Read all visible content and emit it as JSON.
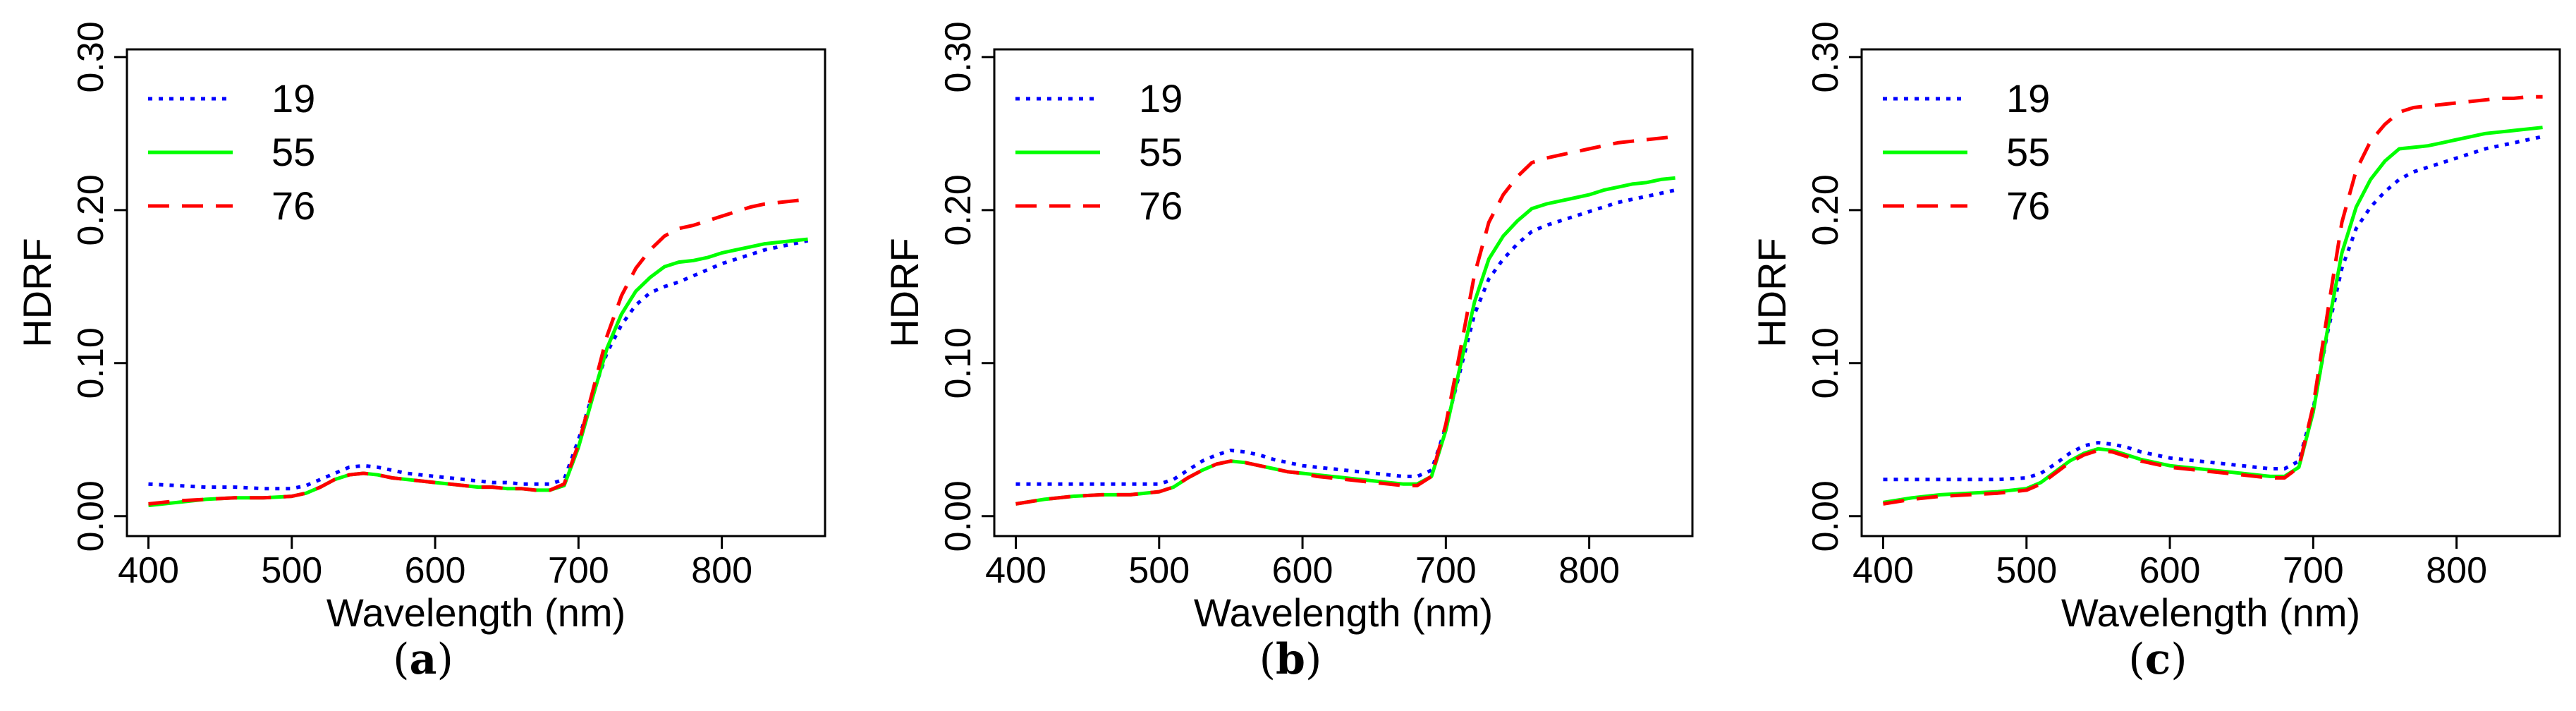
{
  "chart_data": [
    {
      "type": "line",
      "panel_label": "a",
      "xlabel": "Wavelength (nm)",
      "ylabel": "HDRF",
      "xlim": [
        385,
        872
      ],
      "ylim": [
        -0.013,
        0.305
      ],
      "xticks": [
        400,
        500,
        600,
        700,
        800
      ],
      "yticks": [
        0.0,
        0.1,
        0.2,
        0.3
      ],
      "ytick_labels": [
        "0.00",
        "0.10",
        "0.20",
        "0.30"
      ],
      "legend_position": "top-left",
      "series": [
        {
          "name": "19",
          "color": "#0000ff",
          "style": "dotted",
          "x": [
            400,
            420,
            440,
            460,
            480,
            500,
            510,
            520,
            530,
            540,
            550,
            560,
            570,
            580,
            590,
            600,
            610,
            620,
            630,
            640,
            650,
            660,
            670,
            680,
            690,
            700,
            710,
            720,
            730,
            740,
            750,
            760,
            770,
            780,
            790,
            800,
            810,
            820,
            830,
            840,
            850,
            860
          ],
          "y": [
            0.021,
            0.02,
            0.019,
            0.019,
            0.018,
            0.018,
            0.02,
            0.024,
            0.028,
            0.032,
            0.033,
            0.032,
            0.03,
            0.028,
            0.027,
            0.026,
            0.025,
            0.024,
            0.023,
            0.022,
            0.022,
            0.021,
            0.021,
            0.021,
            0.024,
            0.05,
            0.08,
            0.107,
            0.125,
            0.138,
            0.146,
            0.15,
            0.153,
            0.157,
            0.161,
            0.165,
            0.168,
            0.171,
            0.174,
            0.176,
            0.178,
            0.18
          ]
        },
        {
          "name": "55",
          "color": "#00ff00",
          "style": "solid",
          "x": [
            400,
            420,
            440,
            460,
            480,
            500,
            510,
            520,
            530,
            540,
            550,
            560,
            570,
            580,
            590,
            600,
            610,
            620,
            630,
            640,
            650,
            660,
            670,
            680,
            690,
            700,
            710,
            720,
            730,
            740,
            750,
            760,
            770,
            780,
            790,
            800,
            810,
            820,
            830,
            840,
            850,
            860
          ],
          "y": [
            0.007,
            0.009,
            0.011,
            0.012,
            0.012,
            0.013,
            0.015,
            0.019,
            0.024,
            0.027,
            0.028,
            0.027,
            0.025,
            0.024,
            0.023,
            0.022,
            0.021,
            0.02,
            0.019,
            0.019,
            0.018,
            0.018,
            0.017,
            0.017,
            0.02,
            0.045,
            0.078,
            0.11,
            0.132,
            0.147,
            0.156,
            0.163,
            0.166,
            0.167,
            0.169,
            0.172,
            0.174,
            0.176,
            0.178,
            0.179,
            0.18,
            0.181
          ]
        },
        {
          "name": "76",
          "color": "#ff0000",
          "style": "dashed",
          "x": [
            400,
            420,
            440,
            460,
            480,
            500,
            510,
            520,
            530,
            540,
            550,
            560,
            570,
            580,
            590,
            600,
            610,
            620,
            630,
            640,
            650,
            660,
            670,
            680,
            690,
            700,
            710,
            720,
            730,
            740,
            750,
            760,
            770,
            780,
            790,
            800,
            810,
            820,
            830,
            840,
            850,
            860
          ],
          "y": [
            0.008,
            0.01,
            0.011,
            0.012,
            0.012,
            0.013,
            0.015,
            0.019,
            0.024,
            0.027,
            0.028,
            0.027,
            0.025,
            0.024,
            0.023,
            0.022,
            0.021,
            0.02,
            0.019,
            0.019,
            0.018,
            0.018,
            0.017,
            0.017,
            0.021,
            0.047,
            0.082,
            0.118,
            0.144,
            0.162,
            0.174,
            0.183,
            0.188,
            0.19,
            0.193,
            0.196,
            0.199,
            0.202,
            0.204,
            0.205,
            0.206,
            0.207
          ]
        }
      ]
    },
    {
      "type": "line",
      "panel_label": "b",
      "xlabel": "Wavelength (nm)",
      "ylabel": "HDRF",
      "xlim": [
        385,
        872
      ],
      "ylim": [
        -0.013,
        0.305
      ],
      "xticks": [
        400,
        500,
        600,
        700,
        800
      ],
      "yticks": [
        0.0,
        0.1,
        0.2,
        0.3
      ],
      "ytick_labels": [
        "0.00",
        "0.10",
        "0.20",
        "0.30"
      ],
      "legend_position": "top-left",
      "series": [
        {
          "name": "19",
          "color": "#0000ff",
          "style": "dotted",
          "x": [
            400,
            420,
            440,
            460,
            480,
            500,
            510,
            520,
            530,
            540,
            550,
            560,
            570,
            580,
            590,
            600,
            610,
            620,
            630,
            640,
            650,
            660,
            670,
            680,
            690,
            700,
            710,
            720,
            730,
            740,
            750,
            760,
            770,
            780,
            790,
            800,
            810,
            820,
            830,
            840,
            850,
            860
          ],
          "y": [
            0.021,
            0.021,
            0.021,
            0.021,
            0.021,
            0.021,
            0.024,
            0.03,
            0.036,
            0.04,
            0.043,
            0.042,
            0.04,
            0.037,
            0.035,
            0.033,
            0.032,
            0.031,
            0.03,
            0.029,
            0.028,
            0.027,
            0.026,
            0.026,
            0.03,
            0.058,
            0.095,
            0.132,
            0.155,
            0.168,
            0.178,
            0.186,
            0.19,
            0.193,
            0.196,
            0.199,
            0.202,
            0.205,
            0.207,
            0.209,
            0.211,
            0.213
          ]
        },
        {
          "name": "55",
          "color": "#00ff00",
          "style": "solid",
          "x": [
            400,
            420,
            440,
            460,
            480,
            500,
            510,
            520,
            530,
            540,
            550,
            560,
            570,
            580,
            590,
            600,
            610,
            620,
            630,
            640,
            650,
            660,
            670,
            680,
            690,
            700,
            710,
            720,
            730,
            740,
            750,
            760,
            770,
            780,
            790,
            800,
            810,
            820,
            830,
            840,
            850,
            860
          ],
          "y": [
            0.008,
            0.011,
            0.013,
            0.014,
            0.014,
            0.016,
            0.019,
            0.025,
            0.03,
            0.034,
            0.036,
            0.035,
            0.033,
            0.031,
            0.029,
            0.028,
            0.027,
            0.026,
            0.025,
            0.024,
            0.023,
            0.022,
            0.021,
            0.021,
            0.026,
            0.056,
            0.098,
            0.14,
            0.168,
            0.183,
            0.193,
            0.201,
            0.204,
            0.206,
            0.208,
            0.21,
            0.213,
            0.215,
            0.217,
            0.218,
            0.22,
            0.221
          ]
        },
        {
          "name": "76",
          "color": "#ff0000",
          "style": "dashed",
          "x": [
            400,
            420,
            440,
            460,
            480,
            500,
            510,
            520,
            530,
            540,
            550,
            560,
            570,
            580,
            590,
            600,
            610,
            620,
            630,
            640,
            650,
            660,
            670,
            680,
            690,
            700,
            710,
            720,
            730,
            740,
            750,
            760,
            770,
            780,
            790,
            800,
            810,
            820,
            830,
            840,
            850,
            860
          ],
          "y": [
            0.008,
            0.011,
            0.013,
            0.014,
            0.014,
            0.016,
            0.019,
            0.025,
            0.03,
            0.034,
            0.036,
            0.035,
            0.033,
            0.031,
            0.029,
            0.028,
            0.026,
            0.025,
            0.024,
            0.023,
            0.022,
            0.021,
            0.02,
            0.02,
            0.026,
            0.06,
            0.108,
            0.158,
            0.192,
            0.21,
            0.222,
            0.231,
            0.234,
            0.236,
            0.238,
            0.24,
            0.242,
            0.244,
            0.245,
            0.246,
            0.247,
            0.248
          ]
        }
      ]
    },
    {
      "type": "line",
      "panel_label": "c",
      "xlabel": "Wavelength (nm)",
      "ylabel": "HDRF",
      "xlim": [
        385,
        872
      ],
      "ylim": [
        -0.013,
        0.305
      ],
      "xticks": [
        400,
        500,
        600,
        700,
        800
      ],
      "yticks": [
        0.0,
        0.1,
        0.2,
        0.3
      ],
      "ytick_labels": [
        "0.00",
        "0.10",
        "0.20",
        "0.30"
      ],
      "legend_position": "top-left",
      "series": [
        {
          "name": "19",
          "color": "#0000ff",
          "style": "dotted",
          "x": [
            400,
            420,
            440,
            460,
            480,
            500,
            510,
            520,
            530,
            540,
            550,
            560,
            570,
            580,
            590,
            600,
            610,
            620,
            630,
            640,
            650,
            660,
            670,
            680,
            690,
            700,
            710,
            720,
            730,
            740,
            750,
            760,
            770,
            780,
            790,
            800,
            810,
            820,
            830,
            840,
            850,
            860
          ],
          "y": [
            0.024,
            0.024,
            0.024,
            0.024,
            0.024,
            0.025,
            0.028,
            0.034,
            0.041,
            0.046,
            0.048,
            0.047,
            0.045,
            0.042,
            0.04,
            0.038,
            0.037,
            0.036,
            0.035,
            0.034,
            0.033,
            0.032,
            0.031,
            0.031,
            0.036,
            0.07,
            0.12,
            0.162,
            0.188,
            0.202,
            0.212,
            0.22,
            0.225,
            0.228,
            0.231,
            0.234,
            0.237,
            0.24,
            0.242,
            0.244,
            0.246,
            0.248
          ]
        },
        {
          "name": "55",
          "color": "#00ff00",
          "style": "solid",
          "x": [
            400,
            420,
            440,
            460,
            480,
            500,
            510,
            520,
            530,
            540,
            550,
            560,
            570,
            580,
            590,
            600,
            610,
            620,
            630,
            640,
            650,
            660,
            670,
            680,
            690,
            700,
            710,
            720,
            730,
            740,
            750,
            760,
            770,
            780,
            790,
            800,
            810,
            820,
            830,
            840,
            850,
            860
          ],
          "y": [
            0.009,
            0.012,
            0.014,
            0.015,
            0.016,
            0.018,
            0.022,
            0.029,
            0.036,
            0.041,
            0.044,
            0.043,
            0.04,
            0.037,
            0.035,
            0.033,
            0.032,
            0.031,
            0.03,
            0.029,
            0.028,
            0.027,
            0.026,
            0.026,
            0.032,
            0.068,
            0.122,
            0.172,
            0.202,
            0.22,
            0.232,
            0.24,
            0.241,
            0.242,
            0.244,
            0.246,
            0.248,
            0.25,
            0.251,
            0.252,
            0.253,
            0.254
          ]
        },
        {
          "name": "76",
          "color": "#ff0000",
          "style": "dashed",
          "x": [
            400,
            420,
            440,
            460,
            480,
            500,
            510,
            520,
            530,
            540,
            550,
            560,
            570,
            580,
            590,
            600,
            610,
            620,
            630,
            640,
            650,
            660,
            670,
            680,
            690,
            700,
            710,
            720,
            730,
            740,
            750,
            760,
            770,
            780,
            790,
            800,
            810,
            820,
            830,
            840,
            850,
            860
          ],
          "y": [
            0.008,
            0.011,
            0.013,
            0.014,
            0.015,
            0.017,
            0.021,
            0.028,
            0.035,
            0.04,
            0.043,
            0.042,
            0.039,
            0.036,
            0.034,
            0.032,
            0.031,
            0.03,
            0.029,
            0.028,
            0.027,
            0.026,
            0.025,
            0.025,
            0.032,
            0.072,
            0.133,
            0.192,
            0.226,
            0.245,
            0.256,
            0.264,
            0.267,
            0.268,
            0.269,
            0.27,
            0.271,
            0.272,
            0.273,
            0.273,
            0.274,
            0.274
          ]
        }
      ]
    }
  ]
}
